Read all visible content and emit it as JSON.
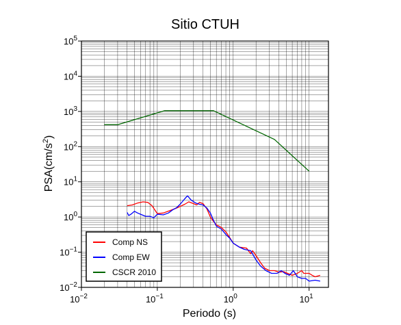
{
  "chart_data": {
    "type": "line",
    "title": "Sitio CTUH",
    "xlabel": "Periodo (s)",
    "ylabel": {
      "base": "PSA(cm/s",
      "sup": "2",
      "end": ")"
    },
    "xscale": "log",
    "yscale": "log",
    "xlim": [
      0.01,
      18
    ],
    "ylim": [
      0.01,
      100000
    ],
    "grid": true,
    "legend_position": "bottom-left",
    "x_ticks": [
      {
        "base": "10",
        "exp": "−2",
        "value": 0.01
      },
      {
        "base": "10",
        "exp": "−1",
        "value": 0.1
      },
      {
        "base": "10",
        "exp": "0",
        "value": 1
      },
      {
        "base": "10",
        "exp": "1",
        "value": 10
      }
    ],
    "y_ticks": [
      {
        "base": "10",
        "exp": "−2",
        "value": 0.01
      },
      {
        "base": "10",
        "exp": "−1",
        "value": 0.1
      },
      {
        "base": "10",
        "exp": "0",
        "value": 1
      },
      {
        "base": "10",
        "exp": "1",
        "value": 10
      },
      {
        "base": "10",
        "exp": "2",
        "value": 100
      },
      {
        "base": "10",
        "exp": "3",
        "value": 1000
      },
      {
        "base": "10",
        "exp": "4",
        "value": 10000
      },
      {
        "base": "10",
        "exp": "5",
        "value": 100000
      }
    ],
    "series": [
      {
        "name": "Comp NS",
        "color": "#ff0000",
        "points": [
          [
            0.04,
            2.1
          ],
          [
            0.047,
            2.2
          ],
          [
            0.055,
            2.5
          ],
          [
            0.065,
            2.7
          ],
          [
            0.075,
            2.6
          ],
          [
            0.085,
            2.1
          ],
          [
            0.1,
            1.25
          ],
          [
            0.12,
            1.3
          ],
          [
            0.15,
            1.55
          ],
          [
            0.18,
            1.8
          ],
          [
            0.2,
            2.0
          ],
          [
            0.23,
            2.3
          ],
          [
            0.26,
            2.7
          ],
          [
            0.3,
            2.4
          ],
          [
            0.33,
            2.2
          ],
          [
            0.36,
            2.6
          ],
          [
            0.4,
            2.4
          ],
          [
            0.45,
            1.7
          ],
          [
            0.5,
            1.0
          ],
          [
            0.55,
            0.75
          ],
          [
            0.6,
            0.6
          ],
          [
            0.7,
            0.5
          ],
          [
            0.8,
            0.38
          ],
          [
            0.9,
            0.26
          ],
          [
            1.0,
            0.18
          ],
          [
            1.2,
            0.14
          ],
          [
            1.5,
            0.13
          ],
          [
            1.7,
            0.09
          ],
          [
            1.8,
            0.11
          ],
          [
            2.0,
            0.08
          ],
          [
            2.3,
            0.05
          ],
          [
            2.6,
            0.035
          ],
          [
            3.0,
            0.03
          ],
          [
            3.5,
            0.03
          ],
          [
            4.0,
            0.027
          ],
          [
            4.6,
            0.028
          ],
          [
            5.2,
            0.025
          ],
          [
            6.0,
            0.022
          ],
          [
            7.0,
            0.025
          ],
          [
            8.0,
            0.03
          ],
          [
            8.5,
            0.025
          ],
          [
            10.0,
            0.025
          ],
          [
            11.0,
            0.022
          ],
          [
            12.0,
            0.02
          ],
          [
            14.0,
            0.022
          ]
        ]
      },
      {
        "name": "Comp EW",
        "color": "#0000ff",
        "points": [
          [
            0.04,
            1.35
          ],
          [
            0.042,
            1.1
          ],
          [
            0.045,
            1.2
          ],
          [
            0.05,
            1.45
          ],
          [
            0.055,
            1.3
          ],
          [
            0.06,
            1.2
          ],
          [
            0.07,
            1.05
          ],
          [
            0.08,
            1.05
          ],
          [
            0.09,
            0.95
          ],
          [
            0.1,
            1.2
          ],
          [
            0.12,
            1.15
          ],
          [
            0.14,
            1.3
          ],
          [
            0.16,
            1.6
          ],
          [
            0.18,
            1.85
          ],
          [
            0.2,
            2.3
          ],
          [
            0.23,
            3.3
          ],
          [
            0.25,
            4.0
          ],
          [
            0.28,
            3.0
          ],
          [
            0.32,
            2.5
          ],
          [
            0.36,
            2.3
          ],
          [
            0.4,
            2.2
          ],
          [
            0.45,
            1.8
          ],
          [
            0.5,
            1.3
          ],
          [
            0.55,
            0.8
          ],
          [
            0.6,
            0.55
          ],
          [
            0.7,
            0.45
          ],
          [
            0.8,
            0.32
          ],
          [
            0.9,
            0.25
          ],
          [
            1.0,
            0.18
          ],
          [
            1.2,
            0.14
          ],
          [
            1.4,
            0.12
          ],
          [
            1.7,
            0.11
          ],
          [
            2.0,
            0.06
          ],
          [
            2.3,
            0.04
          ],
          [
            2.7,
            0.03
          ],
          [
            3.2,
            0.025
          ],
          [
            3.8,
            0.025
          ],
          [
            4.3,
            0.03
          ],
          [
            4.8,
            0.025
          ],
          [
            5.5,
            0.022
          ],
          [
            6.2,
            0.03
          ],
          [
            7.0,
            0.02
          ],
          [
            8.0,
            0.018
          ],
          [
            9.0,
            0.018
          ],
          [
            10.0,
            0.015
          ],
          [
            12.0,
            0.016
          ],
          [
            14.0,
            0.015
          ]
        ]
      },
      {
        "name": "CSCR 2010",
        "color": "#006600",
        "points": [
          [
            0.02,
            420
          ],
          [
            0.03,
            420
          ],
          [
            0.125,
            1050
          ],
          [
            0.55,
            1050
          ],
          [
            3.5,
            160
          ],
          [
            10.0,
            20
          ]
        ]
      }
    ]
  }
}
